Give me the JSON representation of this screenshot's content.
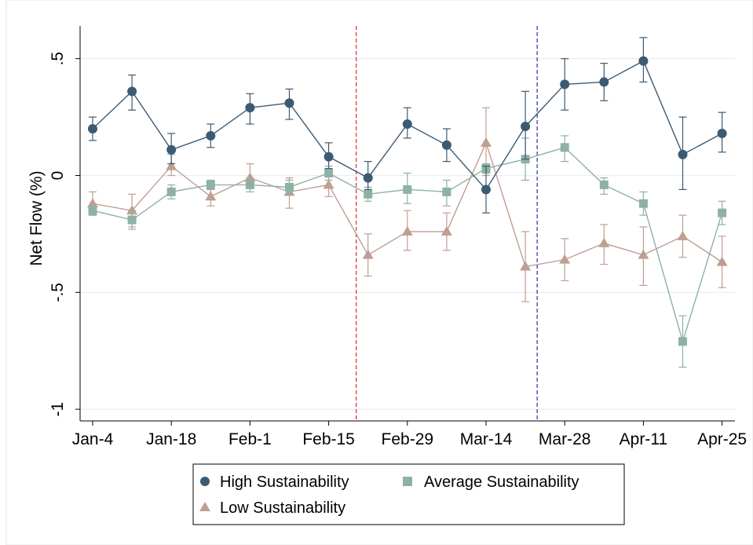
{
  "chart_data": {
    "type": "line",
    "ylabel": "Net Flow (%)",
    "ylim": [
      -1.05,
      0.64
    ],
    "yticks": [
      {
        "value": 0.5,
        "label": ".5"
      },
      {
        "value": 0,
        "label": "0"
      },
      {
        "value": -0.5,
        "label": "-.5"
      },
      {
        "value": -1,
        "label": "-1"
      }
    ],
    "xticks": [
      {
        "index": 0,
        "label": "Jan-4"
      },
      {
        "index": 2,
        "label": "Jan-18"
      },
      {
        "index": 4,
        "label": "Feb-1"
      },
      {
        "index": 6,
        "label": "Feb-15"
      },
      {
        "index": 8,
        "label": "Feb-29"
      },
      {
        "index": 10,
        "label": "Mar-14"
      },
      {
        "index": 12,
        "label": "Mar-28"
      },
      {
        "index": 14,
        "label": "Apr-11"
      },
      {
        "index": 16,
        "label": "Apr-25"
      }
    ],
    "x_count": 17,
    "vlines": [
      {
        "x": 6.7,
        "color": "#e0282e"
      },
      {
        "x": 11.3,
        "color": "#2b2bb8"
      }
    ],
    "grid": true,
    "series": [
      {
        "name": "High Sustainability",
        "color": "#3d5a73",
        "marker": "circle",
        "values": [
          0.2,
          0.36,
          0.11,
          0.17,
          0.29,
          0.31,
          0.08,
          -0.01,
          0.22,
          0.13,
          -0.06,
          0.21,
          0.39,
          0.4,
          0.49,
          0.09,
          0.18
        ],
        "ci_low": [
          0.15,
          0.28,
          0.05,
          0.12,
          0.22,
          0.24,
          0.03,
          -0.06,
          0.16,
          0.06,
          -0.16,
          0.07,
          0.28,
          0.32,
          0.4,
          -0.06,
          0.1
        ],
        "ci_high": [
          0.25,
          0.43,
          0.18,
          0.22,
          0.35,
          0.37,
          0.14,
          0.06,
          0.29,
          0.2,
          0.04,
          0.36,
          0.5,
          0.48,
          0.59,
          0.25,
          0.27
        ]
      },
      {
        "name": "Average Sustainability",
        "color": "#8fb1a5",
        "marker": "square",
        "values": [
          -0.15,
          -0.19,
          -0.07,
          -0.04,
          -0.04,
          -0.05,
          0.01,
          -0.08,
          -0.06,
          -0.07,
          0.03,
          0.07,
          0.12,
          -0.04,
          -0.12,
          -0.71,
          -0.16
        ],
        "ci_low": [
          -0.17,
          -0.23,
          -0.1,
          -0.06,
          -0.07,
          -0.08,
          -0.02,
          -0.11,
          -0.12,
          -0.13,
          0.01,
          -0.02,
          0.06,
          -0.08,
          -0.17,
          -0.82,
          -0.21
        ],
        "ci_high": [
          -0.13,
          -0.15,
          -0.04,
          -0.02,
          -0.01,
          -0.02,
          0.04,
          -0.05,
          0.01,
          -0.02,
          0.05,
          0.16,
          0.17,
          -0.01,
          -0.07,
          -0.6,
          -0.11
        ]
      },
      {
        "name": "Low Sustainability",
        "color": "#c09e92",
        "marker": "triangle",
        "values": [
          -0.12,
          -0.15,
          0.04,
          -0.09,
          -0.01,
          -0.07,
          -0.04,
          -0.34,
          -0.24,
          -0.24,
          0.14,
          -0.39,
          -0.36,
          -0.29,
          -0.34,
          -0.26,
          -0.37
        ],
        "ci_low": [
          -0.17,
          -0.22,
          0.0,
          -0.13,
          -0.05,
          -0.14,
          -0.09,
          -0.43,
          -0.32,
          -0.32,
          0.0,
          -0.54,
          -0.45,
          -0.38,
          -0.47,
          -0.35,
          -0.48
        ],
        "ci_high": [
          -0.07,
          -0.08,
          0.09,
          -0.06,
          0.05,
          -0.01,
          0.0,
          -0.25,
          -0.15,
          -0.16,
          0.29,
          -0.24,
          -0.27,
          -0.21,
          -0.22,
          -0.17,
          -0.26
        ]
      }
    ],
    "legend": {
      "placement": "bottom",
      "entries": [
        "High Sustainability",
        "Average Sustainability",
        "Low Sustainability"
      ]
    }
  }
}
